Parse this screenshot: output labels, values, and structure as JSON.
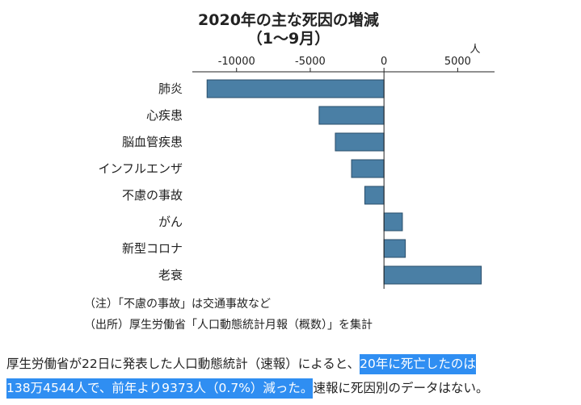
{
  "chart_data": {
    "type": "bar",
    "orientation": "horizontal",
    "title": "2020年の主な死因の増減",
    "subtitle": "（1～9月）",
    "unit": "人",
    "categories": [
      "肺炎",
      "心疾患",
      "脳血管疾患",
      "インフルエンザ",
      "不慮の事故",
      "がん",
      "新型コロナ",
      "老衰"
    ],
    "values": [
      -12000,
      -4400,
      -3300,
      -2200,
      -1300,
      1250,
      1450,
      6600
    ],
    "xlim": [
      -13000,
      7500
    ],
    "xticks": [
      -10000,
      -5000,
      0,
      5000
    ],
    "xtick_labels": [
      "-10000",
      "-5000",
      "0",
      "5000"
    ],
    "bar_color": "#4a7fa5",
    "grid": false
  },
  "notes": {
    "note1": "（注）「不慮の事故」は交通事故など",
    "note2": "（出所）厚生労働省「人口動態統計月報（概数）」を集計"
  },
  "article": {
    "part1": "厚生労働省が22日に発表した人口動態統計（速報）によると、",
    "highlight1": "20年に死亡したのは",
    "highlight2": "138万4544人で、前年より9373人（0.7%）減った。",
    "part2": "速報に死因別のデータはない。"
  },
  "colors": {
    "highlight": "#2f8ef2",
    "bar": "#4a7fa5"
  }
}
